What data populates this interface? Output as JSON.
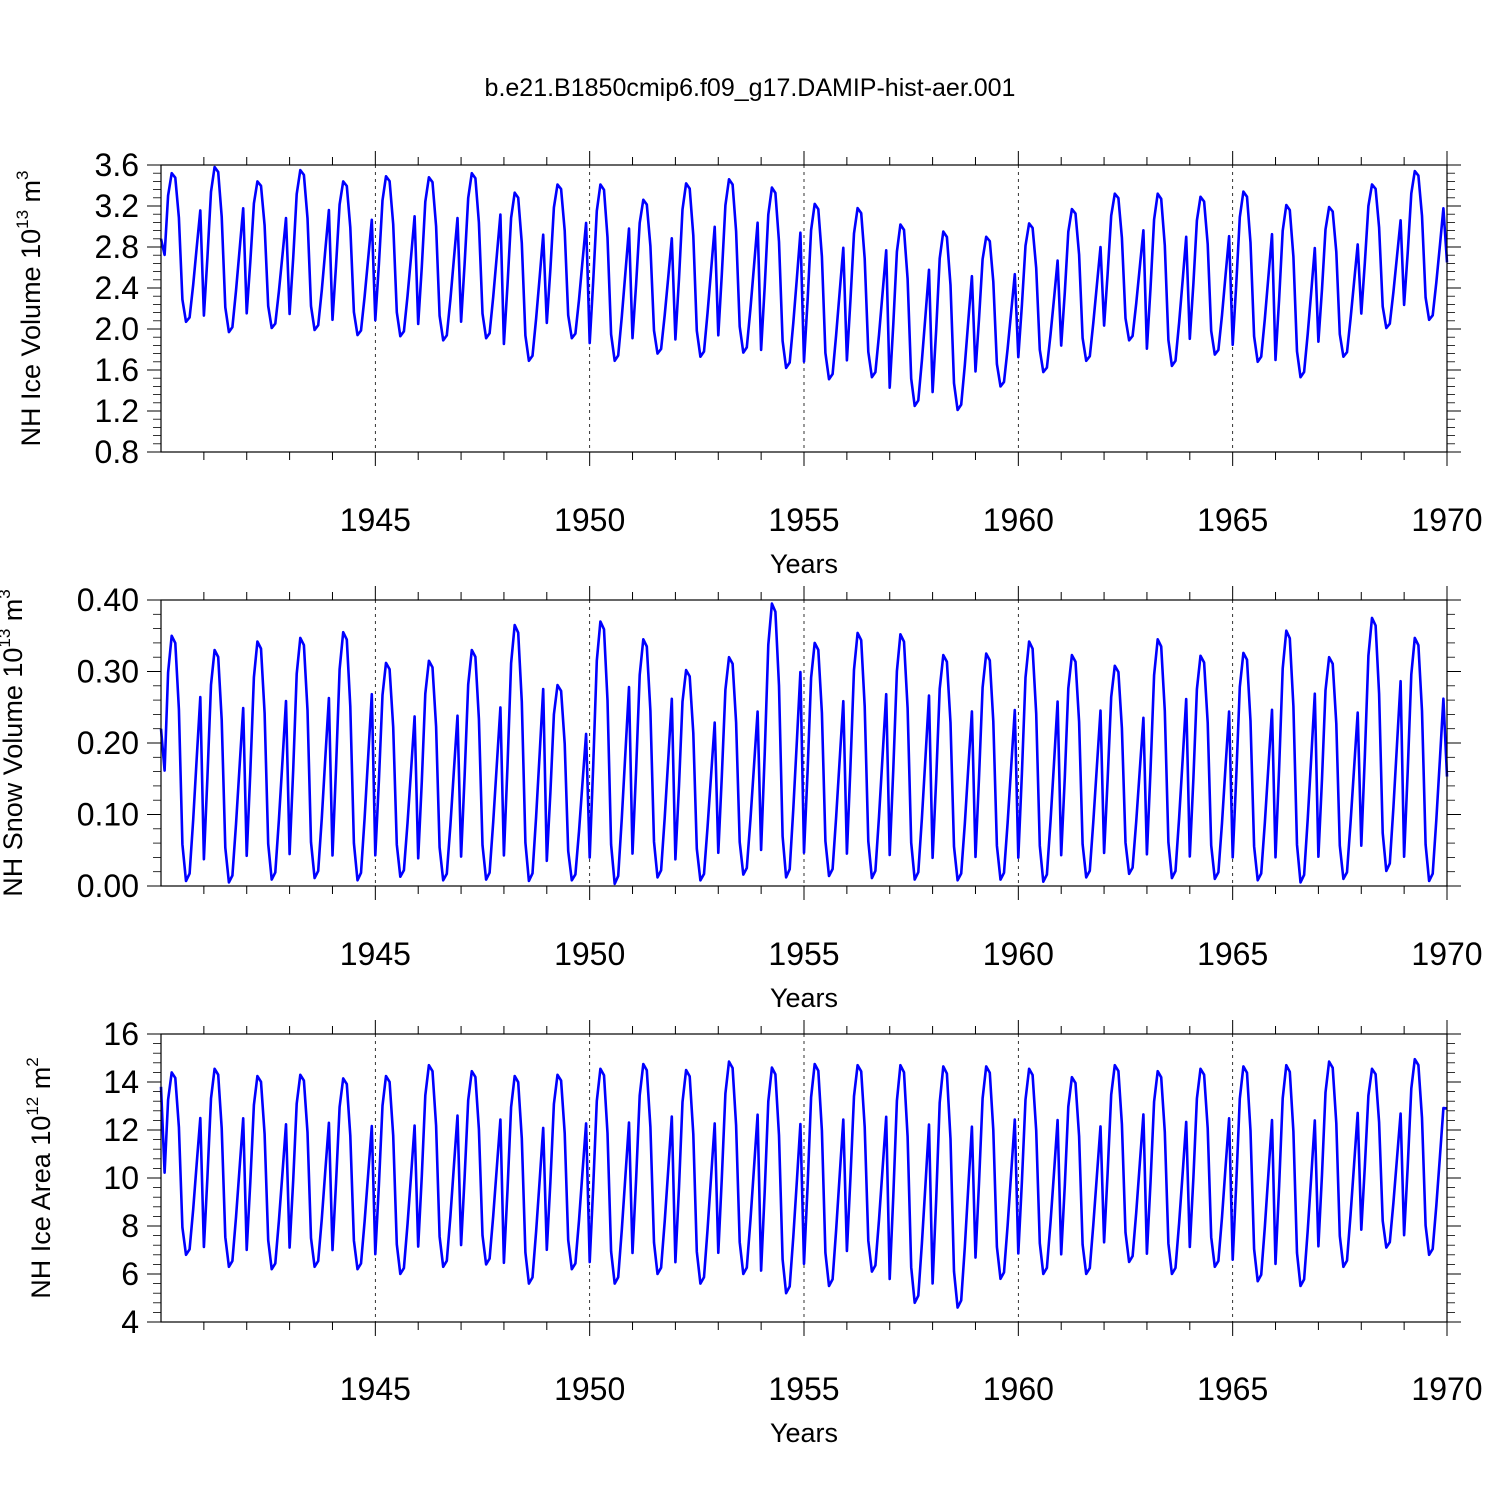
{
  "title": "b.e21.B1850cmip6.f09_g17.DAMIP-hist-aer.001",
  "line_color": "#0000ff",
  "chart_data": [
    {
      "type": "line",
      "title": "b.e21.B1850cmip6.f09_g17.DAMIP-hist-aer.001",
      "ylabel": "NH Ice Volume 10",
      "ylabel_exp": "13",
      "ylabel_unit": " m",
      "ylabel_unit_exp": "3",
      "xlabel": "Years",
      "xlim": [
        1940,
        1970
      ],
      "ylim": [
        0.8,
        3.6
      ],
      "yticks": [
        0.8,
        1.2,
        1.6,
        2.0,
        2.4,
        2.8,
        3.2,
        3.6
      ],
      "ytick_labels": [
        "0.8",
        "1.2",
        "1.6",
        "2.0",
        "2.4",
        "2.8",
        "3.2",
        "3.6"
      ],
      "xticks": [
        1945,
        1950,
        1955,
        1960,
        1965,
        1970
      ],
      "xtick_labels": [
        "1945",
        "1950",
        "1955",
        "1960",
        "1965",
        "1970"
      ],
      "grid": "dashed vertical lines at 5-year ticks",
      "series": [
        {
          "name": "NH Ice Volume",
          "start_year": 1940,
          "max": [
            3.52,
            3.58,
            3.44,
            3.55,
            3.44,
            3.49,
            3.48,
            3.52,
            3.33,
            3.41,
            3.41,
            3.26,
            3.42,
            3.46,
            3.38,
            3.22,
            3.18,
            3.02,
            2.95,
            2.9,
            3.03,
            3.17,
            3.32,
            3.32,
            3.29,
            3.34,
            3.21,
            3.19,
            3.41,
            3.54
          ],
          "min": [
            2.07,
            1.97,
            2.01,
            1.99,
            1.94,
            1.93,
            1.89,
            1.91,
            1.69,
            1.91,
            1.69,
            1.76,
            1.73,
            1.77,
            1.62,
            1.51,
            1.53,
            1.25,
            1.21,
            1.44,
            1.58,
            1.69,
            1.89,
            1.64,
            1.75,
            1.68,
            1.53,
            1.73,
            2.01,
            2.09
          ],
          "start_value": 2.88,
          "end_value": 2.65
        }
      ]
    },
    {
      "type": "line",
      "ylabel": "NH Snow Volume 10",
      "ylabel_exp": "13",
      "ylabel_unit": " m",
      "ylabel_unit_exp": "3",
      "xlabel": "Years",
      "xlim": [
        1940,
        1970
      ],
      "ylim": [
        0.0,
        0.4
      ],
      "yticks": [
        0.0,
        0.1,
        0.2,
        0.3,
        0.4
      ],
      "ytick_labels": [
        "0.00",
        "0.10",
        "0.20",
        "0.30",
        "0.40"
      ],
      "xticks": [
        1945,
        1950,
        1955,
        1960,
        1965,
        1970
      ],
      "xtick_labels": [
        "1945",
        "1950",
        "1955",
        "1960",
        "1965",
        "1970"
      ],
      "grid": "dashed vertical lines at 5-year ticks",
      "series": [
        {
          "name": "NH Snow Volume",
          "start_year": 1940,
          "max": [
            0.35,
            0.33,
            0.342,
            0.347,
            0.355,
            0.312,
            0.315,
            0.33,
            0.365,
            0.281,
            0.37,
            0.345,
            0.302,
            0.32,
            0.395,
            0.34,
            0.354,
            0.352,
            0.323,
            0.325,
            0.342,
            0.323,
            0.308,
            0.345,
            0.322,
            0.326,
            0.357,
            0.32,
            0.375,
            0.347
          ],
          "min": [
            0.007,
            0.005,
            0.009,
            0.011,
            0.008,
            0.013,
            0.008,
            0.009,
            0.007,
            0.008,
            0.003,
            0.012,
            0.008,
            0.016,
            0.012,
            0.014,
            0.011,
            0.009,
            0.008,
            0.009,
            0.006,
            0.012,
            0.017,
            0.011,
            0.01,
            0.008,
            0.005,
            0.01,
            0.021,
            0.007
          ],
          "start_value": 0.22,
          "end_value": 0.153
        }
      ]
    },
    {
      "type": "line",
      "ylabel": "NH Ice Area 10",
      "ylabel_exp": "12",
      "ylabel_unit": " m",
      "ylabel_unit_exp": "2",
      "xlabel": "Years",
      "xlim": [
        1940,
        1970
      ],
      "ylim": [
        4,
        16
      ],
      "yticks": [
        4,
        6,
        8,
        10,
        12,
        14,
        16
      ],
      "ytick_labels": [
        "4",
        "6",
        "8",
        "10",
        "12",
        "14",
        "16"
      ],
      "xticks": [
        1945,
        1950,
        1955,
        1960,
        1965,
        1970
      ],
      "xtick_labels": [
        "1945",
        "1950",
        "1955",
        "1960",
        "1965",
        "1970"
      ],
      "grid": "dashed vertical lines at 5-year ticks",
      "series": [
        {
          "name": "NH Ice Area",
          "start_year": 1940,
          "max": [
            14.4,
            14.55,
            14.25,
            14.3,
            14.15,
            14.25,
            14.7,
            14.45,
            14.25,
            14.3,
            14.55,
            14.75,
            14.5,
            14.85,
            14.6,
            14.75,
            14.7,
            14.7,
            14.65,
            14.65,
            14.55,
            14.2,
            14.7,
            14.45,
            14.55,
            14.65,
            14.7,
            14.85,
            14.55,
            14.95
          ],
          "min": [
            6.8,
            6.3,
            6.2,
            6.3,
            6.2,
            6.0,
            6.3,
            6.4,
            5.6,
            6.2,
            5.6,
            6.0,
            5.6,
            6.0,
            5.2,
            5.5,
            6.1,
            4.8,
            4.6,
            5.8,
            6.0,
            6.0,
            6.5,
            6.0,
            6.3,
            5.7,
            5.5,
            6.3,
            7.1,
            6.8
          ],
          "start_value": 13.8,
          "end_value": 12.9
        }
      ]
    }
  ]
}
